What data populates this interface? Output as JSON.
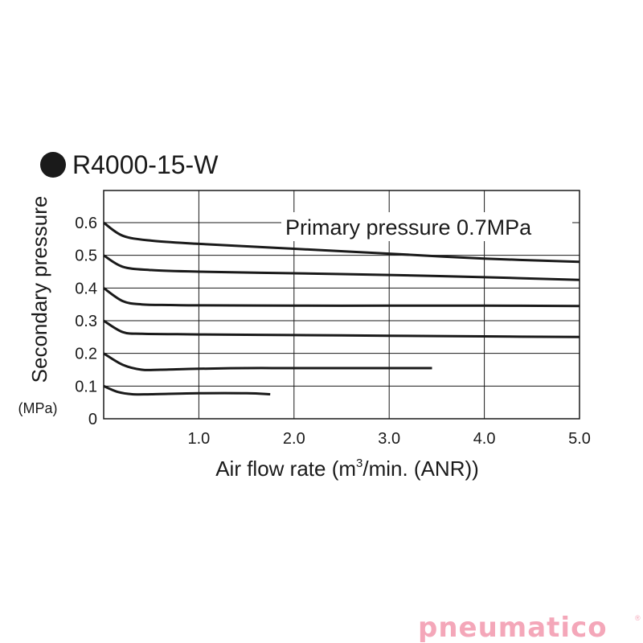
{
  "chart_data": {
    "type": "line",
    "title": "R4000-15-W",
    "ylabel": "Secondary pressure",
    "yunit": "(MPa)",
    "xlabel_main": "Air flow rate (m",
    "xlabel_sup": "3",
    "xlabel_rest": "/min. (ANR))",
    "annotation": "Primary pressure 0.7MPa",
    "xlim": [
      0,
      5
    ],
    "ylim": [
      0,
      0.6
    ],
    "xticks": [
      "1.0",
      "2.0",
      "3.0",
      "4.0",
      "5.0"
    ],
    "yticks": [
      "0",
      "0.1",
      "0.2",
      "0.3",
      "0.4",
      "0.5",
      "0.6"
    ],
    "grid": true,
    "series": [
      {
        "set_pressure": 0.6,
        "x": [
          0,
          0.2,
          0.5,
          1.0,
          2.0,
          3.0,
          4.0,
          5.0
        ],
        "y": [
          0.6,
          0.56,
          0.545,
          0.535,
          0.52,
          0.505,
          0.49,
          0.48
        ]
      },
      {
        "set_pressure": 0.5,
        "x": [
          0,
          0.2,
          0.5,
          1.0,
          2.0,
          3.0,
          4.0,
          5.0
        ],
        "y": [
          0.5,
          0.465,
          0.455,
          0.45,
          0.445,
          0.44,
          0.433,
          0.425
        ]
      },
      {
        "set_pressure": 0.4,
        "x": [
          0,
          0.2,
          0.4,
          0.7,
          1.0,
          2.0,
          3.0,
          4.0,
          5.0
        ],
        "y": [
          0.4,
          0.36,
          0.35,
          0.348,
          0.347,
          0.346,
          0.346,
          0.346,
          0.345
        ]
      },
      {
        "set_pressure": 0.3,
        "x": [
          0,
          0.2,
          0.4,
          0.7,
          1.0,
          2.0,
          3.0,
          4.0,
          5.0
        ],
        "y": [
          0.3,
          0.265,
          0.26,
          0.259,
          0.258,
          0.256,
          0.254,
          0.252,
          0.25
        ]
      },
      {
        "set_pressure": 0.2,
        "x": [
          0,
          0.2,
          0.4,
          0.6,
          1.0,
          1.5,
          2.0,
          3.0,
          3.45
        ],
        "y": [
          0.2,
          0.165,
          0.15,
          0.15,
          0.153,
          0.155,
          0.155,
          0.155,
          0.155
        ]
      },
      {
        "set_pressure": 0.1,
        "x": [
          0,
          0.15,
          0.3,
          0.5,
          1.0,
          1.5,
          1.75
        ],
        "y": [
          0.1,
          0.082,
          0.075,
          0.075,
          0.078,
          0.078,
          0.075
        ]
      }
    ]
  },
  "watermark": {
    "text": "pneumatico",
    "reg_mark": "®",
    "color": "#f4a7b9"
  }
}
